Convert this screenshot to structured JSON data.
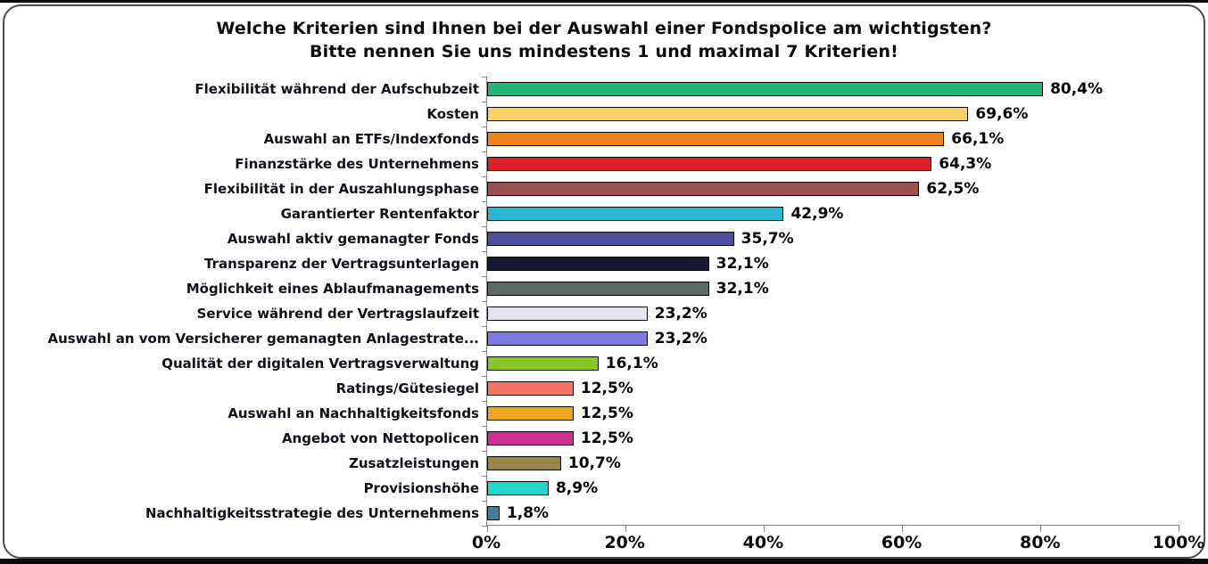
{
  "title": {
    "line1": "Welche Kriterien sind Ihnen bei der Auswahl einer Fondspolice am wichtigsten?",
    "line2": "Bitte nennen Sie uns mindestens 1 und maximal 7 Kriterien!"
  },
  "chart_data": {
    "type": "bar",
    "orientation": "horizontal",
    "title": "Welche Kriterien sind Ihnen bei der Auswahl einer Fondspolice am wichtigsten? Bitte nennen Sie uns mindestens 1 und maximal 7 Kriterien!",
    "categories": [
      "Flexibilität während der Aufschubzeit",
      "Kosten",
      "Auswahl an ETFs/Indexfonds",
      "Finanzstärke des Unternehmens",
      "Flexibilität in der Auszahlungsphase",
      "Garantierter Rentenfaktor",
      "Auswahl aktiv gemanagter Fonds",
      "Transparenz der Vertragsunterlagen",
      "Möglichkeit eines Ablaufmanagements",
      "Service während der Vertragslaufzeit",
      "Auswahl an vom Versicherer gemanagten Anlagestrate...",
      "Qualität der digitalen Vertragsverwaltung",
      "Ratings/Gütesiegel",
      "Auswahl an Nachhaltigkeitsfonds",
      "Angebot von Nettopolicen",
      "Zusatzleistungen",
      "Provisionshöhe",
      "Nachhaltigkeitsstrategie des Unternehmens"
    ],
    "values": [
      80.4,
      69.6,
      66.1,
      64.3,
      62.5,
      42.9,
      35.7,
      32.1,
      32.1,
      23.2,
      23.2,
      16.1,
      12.5,
      12.5,
      12.5,
      10.7,
      8.9,
      1.8
    ],
    "value_labels": [
      "80,4%",
      "69,6%",
      "66,1%",
      "64,3%",
      "62,5%",
      "42,9%",
      "35,7%",
      "32,1%",
      "32,1%",
      "23,2%",
      "23,2%",
      "16,1%",
      "12,5%",
      "12,5%",
      "12,5%",
      "10,7%",
      "8,9%",
      "1,8%"
    ],
    "bar_colors": [
      "#25b575",
      "#fbd168",
      "#f0811f",
      "#da2127",
      "#9c5050",
      "#29b7d3",
      "#4e4e9e",
      "#181832",
      "#5e6a68",
      "#e3e6f0",
      "#7e78e3",
      "#89c627",
      "#f4755e",
      "#efa51e",
      "#cd3092",
      "#97854a",
      "#25d4ca",
      "#4a7e92"
    ],
    "xlim": [
      0,
      100
    ],
    "x_ticks": [
      "0%",
      "20%",
      "40%",
      "60%",
      "80%",
      "100%"
    ],
    "grid": false,
    "legend": false,
    "bar_border_color": "#000000",
    "axis_color": "#8a8a8a"
  }
}
